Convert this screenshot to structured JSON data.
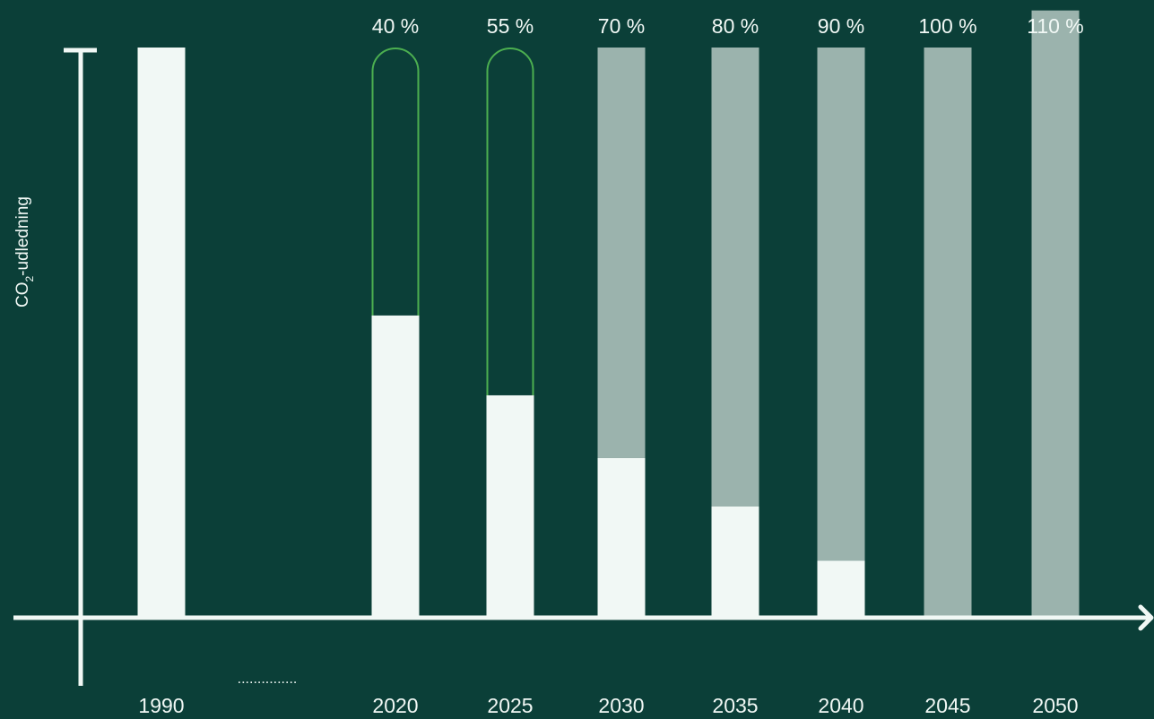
{
  "colors": {
    "background": "#0b3f38",
    "emission": "#f1f8f5",
    "reduction": "#9bb3ad",
    "achieved_outline": "#4caf50",
    "axis": "#f1f8f5"
  },
  "chart_data": {
    "type": "bar",
    "ylabel_main": "CO",
    "ylabel_sub": "2",
    "ylabel_rest": "-udledning",
    "xlabel": "",
    "title": "",
    "ylim": [
      -7,
      100
    ],
    "gap_marker": "...............",
    "categories": [
      "1990",
      "2020",
      "2025",
      "2030",
      "2035",
      "2040",
      "2045",
      "2050"
    ],
    "targets": [
      "",
      "40 %",
      "55 %",
      "70 %",
      "80 %",
      "90 %",
      "100 %",
      "110 %"
    ],
    "emissions": [
      100,
      53,
      39,
      28,
      19.5,
      10,
      0,
      0
    ],
    "reductions": [
      0,
      47,
      61,
      72,
      80.5,
      90,
      100,
      106.5
    ],
    "outlined_reduction": [
      false,
      true,
      true,
      false,
      false,
      false,
      false,
      false
    ]
  }
}
